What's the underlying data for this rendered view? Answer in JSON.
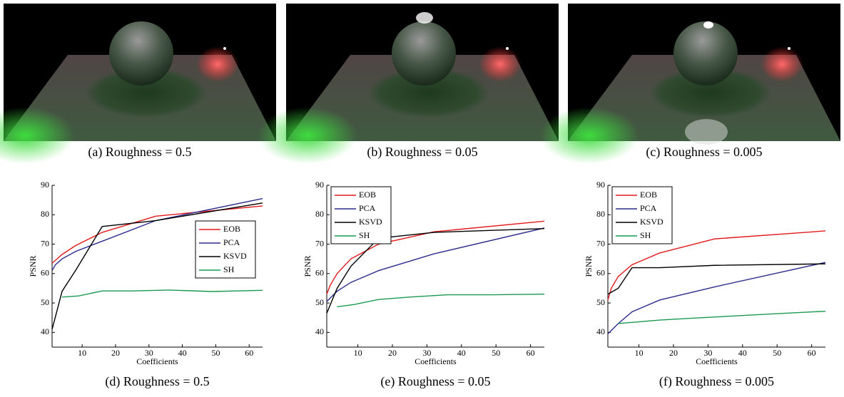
{
  "images": [
    {
      "caption": "(a)  Roughness = 0.5"
    },
    {
      "caption": "(b)  Roughness = 0.05"
    },
    {
      "caption": "(c)  Roughness = 0.005"
    }
  ],
  "chart_data": [
    {
      "type": "line",
      "title": "(d)  Roughness = 0.5",
      "xlabel": "Coefficients",
      "ylabel": "PSNR",
      "xlim": [
        1,
        64
      ],
      "ylim": [
        35,
        90
      ],
      "xticks": [
        10,
        20,
        30,
        40,
        50,
        60
      ],
      "yticks": [
        40,
        50,
        60,
        70,
        80,
        90
      ],
      "legend": "right",
      "series": [
        {
          "name": "EOB",
          "color": "#e31a1c",
          "x": [
            1,
            4,
            8,
            16,
            32,
            64
          ],
          "values": [
            63.5,
            66.5,
            69.5,
            74,
            79.5,
            83
          ]
        },
        {
          "name": "PCA",
          "color": "#2c2c8e",
          "x": [
            1,
            2,
            4,
            8,
            16,
            32,
            64
          ],
          "values": [
            61,
            63,
            65,
            67.5,
            71,
            78,
            85.5
          ]
        },
        {
          "name": "KSVD",
          "color": "#000000",
          "x": [
            1,
            4,
            8,
            16,
            32,
            64
          ],
          "values": [
            41,
            54,
            61,
            76,
            78,
            84
          ]
        },
        {
          "name": "SH",
          "color": "#1a9a50",
          "x": [
            4,
            9,
            16,
            25,
            36,
            49,
            64
          ],
          "values": [
            52,
            52.4,
            54.1,
            54.1,
            54.4,
            53.9,
            54.3
          ]
        }
      ]
    },
    {
      "type": "line",
      "title": "(e)  Roughness = 0.05",
      "xlabel": "Coefficients",
      "ylabel": "PSNR",
      "xlim": [
        1,
        64
      ],
      "ylim": [
        35,
        90
      ],
      "xticks": [
        10,
        20,
        30,
        40,
        50,
        60
      ],
      "yticks": [
        40,
        50,
        60,
        70,
        80,
        90
      ],
      "legend": "upper left",
      "series": [
        {
          "name": "EOB",
          "color": "#e31a1c",
          "x": [
            1,
            2,
            4,
            8,
            16,
            32,
            64
          ],
          "values": [
            53,
            56,
            60,
            65,
            70,
            74.2,
            77.8
          ]
        },
        {
          "name": "PCA",
          "color": "#2c2c8e",
          "x": [
            1,
            4,
            8,
            16,
            32,
            64
          ],
          "values": [
            50.5,
            54,
            57,
            61,
            66.7,
            75.5
          ]
        },
        {
          "name": "KSVD",
          "color": "#000000",
          "x": [
            1,
            4,
            8,
            16,
            32,
            64
          ],
          "values": [
            46.5,
            55,
            62.5,
            72,
            74,
            75.3
          ]
        },
        {
          "name": "SH",
          "color": "#1a9a50",
          "x": [
            4,
            9,
            16,
            25,
            36,
            49,
            64
          ],
          "values": [
            48.7,
            49.5,
            51.2,
            52,
            52.8,
            52.8,
            53
          ]
        }
      ]
    },
    {
      "type": "line",
      "title": "(f)  Roughness = 0.005",
      "xlabel": "Coefficients",
      "ylabel": "PSNR",
      "xlim": [
        1,
        64
      ],
      "ylim": [
        35,
        90
      ],
      "xticks": [
        10,
        20,
        30,
        40,
        50,
        60
      ],
      "yticks": [
        40,
        50,
        60,
        70,
        80,
        90
      ],
      "legend": "upper left",
      "series": [
        {
          "name": "EOB",
          "color": "#e31a1c",
          "x": [
            1,
            2,
            4,
            8,
            16,
            32,
            64
          ],
          "values": [
            51,
            55,
            59,
            63,
            67,
            71.8,
            74.5
          ]
        },
        {
          "name": "PCA",
          "color": "#2c2c8e",
          "x": [
            1,
            4,
            8,
            16,
            32,
            64
          ],
          "values": [
            39.5,
            43,
            47,
            51,
            55.5,
            63.8
          ]
        },
        {
          "name": "KSVD",
          "color": "#000000",
          "x": [
            1,
            4,
            8,
            16,
            32,
            64
          ],
          "values": [
            53,
            55,
            62,
            62,
            62.8,
            63.3
          ]
        },
        {
          "name": "SH",
          "color": "#1a9a50",
          "x": [
            4,
            9,
            16,
            25,
            36,
            49,
            64
          ],
          "values": [
            43,
            43.5,
            44.2,
            44.8,
            45.5,
            46.3,
            47.2
          ]
        }
      ]
    }
  ]
}
